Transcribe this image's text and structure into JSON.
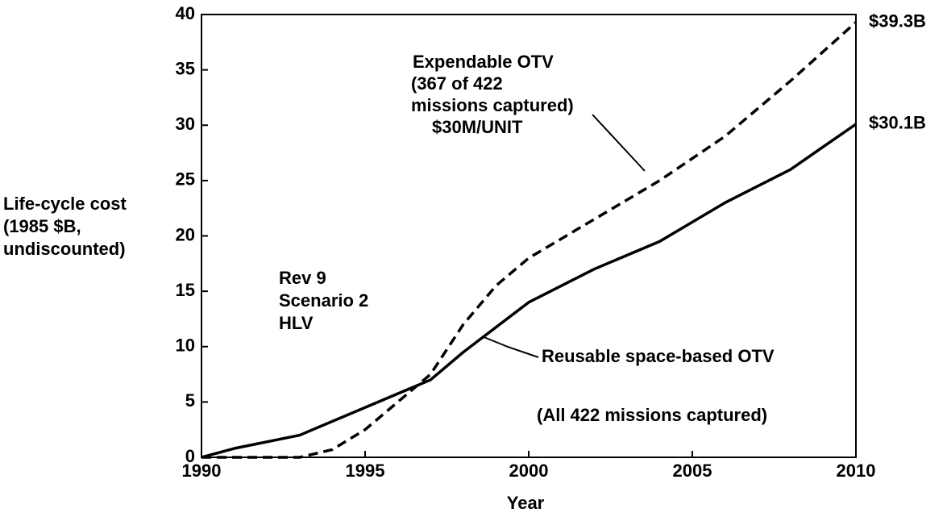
{
  "chart_data": {
    "type": "line",
    "x_label": "Year",
    "y_label": [
      "Life-cycle cost",
      "(1985 $B,",
      "undiscounted)"
    ],
    "xlim": [
      1990,
      2010
    ],
    "xticks": [
      1990,
      1995,
      2000,
      2005,
      2010
    ],
    "ylim": [
      0,
      40
    ],
    "yticks": [
      0,
      5,
      10,
      15,
      20,
      25,
      30,
      35,
      40
    ],
    "grid": false,
    "series": [
      {
        "color": "#000000",
        "dash": true,
        "end_label": "$39.3B",
        "x": [
          1990,
          1993,
          1994,
          1995,
          1996,
          1997,
          1998,
          1999,
          2000,
          2002,
          2004,
          2006,
          2008,
          2010
        ],
        "values": [
          0,
          0,
          0.7,
          2.5,
          5,
          7.5,
          12,
          15.5,
          18,
          21.5,
          25,
          29,
          34,
          39.3
        ]
      },
      {
        "color": "#000000",
        "dash": false,
        "end_label": "$30.1B",
        "x": [
          1990,
          1991,
          1993,
          1995,
          1997,
          1998,
          2000,
          2002,
          2004,
          2006,
          2008,
          2010
        ],
        "values": [
          0,
          0.8,
          2,
          4.5,
          7,
          9.5,
          14,
          17,
          19.5,
          23,
          26,
          30.1
        ]
      }
    ],
    "annotations": [
      {
        "lines": [
          "Expendable OTV",
          "(367 of 422",
          "missions captured)",
          "$30M/UNIT"
        ]
      },
      {
        "lines": [
          "Rev 9",
          "Scenario 2",
          "HLV"
        ]
      },
      {
        "lines": [
          "Reusable space-based OTV"
        ]
      },
      {
        "lines": [
          "(All 422 missions captured)"
        ]
      }
    ]
  }
}
